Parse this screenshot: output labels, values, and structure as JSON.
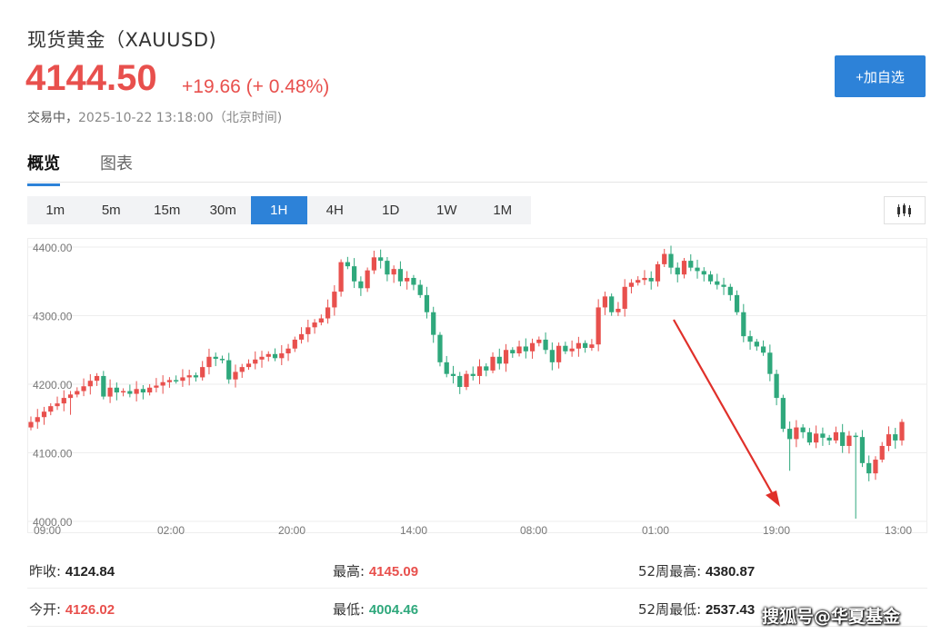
{
  "header": {
    "title": "现货黄金（XAUUSD)",
    "price": "4144.50",
    "change": "+19.66 (+ 0.48%)",
    "status_label": "交易中，",
    "timestamp": "2025-10-22 13:18:00（北京时间)",
    "add_watchlist_label": "+加自选"
  },
  "tabs": [
    "概览",
    "图表"
  ],
  "periods": [
    "1m",
    "5m",
    "15m",
    "30m",
    "1H",
    "4H",
    "1D",
    "1W",
    "1M"
  ],
  "active_period": "1H",
  "colors": {
    "up": "#e8504d",
    "down": "#2fa87c",
    "accent": "#2d82d8",
    "arrow": "#e0302a"
  },
  "chart_data": {
    "type": "candlestick",
    "y_ticks": [
      "4400.00",
      "4300.00",
      "4200.00",
      "4100.00",
      "4000.00"
    ],
    "ylim": [
      4000,
      4400
    ],
    "x_ticks": [
      "09:00",
      "02:00",
      "20:00",
      "14:00",
      "08:00",
      "01:00",
      "19:00",
      "13:00"
    ],
    "close_path": [
      4145,
      4152,
      4160,
      4168,
      4172,
      4180,
      4185,
      4190,
      4197,
      4205,
      4212,
      4182,
      4195,
      4188,
      4190,
      4186,
      4193,
      4188,
      4195,
      4198,
      4203,
      4206,
      4205,
      4210,
      4213,
      4210,
      4225,
      4240,
      4237,
      4235,
      4207,
      4218,
      4225,
      4230,
      4236,
      4240,
      4244,
      4238,
      4245,
      4252,
      4265,
      4273,
      4283,
      4290,
      4296,
      4312,
      4335,
      4378,
      4372,
      4350,
      4340,
      4366,
      4385,
      4380,
      4360,
      4368,
      4350,
      4355,
      4345,
      4330,
      4305,
      4272,
      4232,
      4215,
      4212,
      4196,
      4215,
      4212,
      4226,
      4220,
      4240,
      4230,
      4250,
      4245,
      4255,
      4248,
      4260,
      4265,
      4250,
      4232,
      4256,
      4248,
      4252,
      4260,
      4253,
      4258,
      4312,
      4328,
      4305,
      4310,
      4342,
      4348,
      4352,
      4355,
      4350,
      4375,
      4390,
      4370,
      4360,
      4380,
      4370,
      4365,
      4360,
      4350,
      4345,
      4342,
      4330,
      4305,
      4270,
      4262,
      4255,
      4246,
      4215,
      4180,
      4135,
      4120,
      4137,
      4130,
      4115,
      4128,
      4122,
      4118,
      4130,
      4110,
      4125,
      4123,
      4085,
      4070,
      4090,
      4110,
      4127,
      4118,
      4145
    ],
    "annotation": "red arrow pointing down"
  },
  "stats": {
    "prev_close": {
      "label": "昨收:",
      "value": "4124.84"
    },
    "open": {
      "label": "今开:",
      "value": "4126.02"
    },
    "high": {
      "label": "最高:",
      "value": "4145.09"
    },
    "low": {
      "label": "最低:",
      "value": "4004.46"
    },
    "high52": {
      "label": "52周最高:",
      "value": "4380.87"
    },
    "low52": {
      "label": "52周最低:",
      "value": "2537.43"
    }
  },
  "watermark": "搜狐号@华夏基金"
}
